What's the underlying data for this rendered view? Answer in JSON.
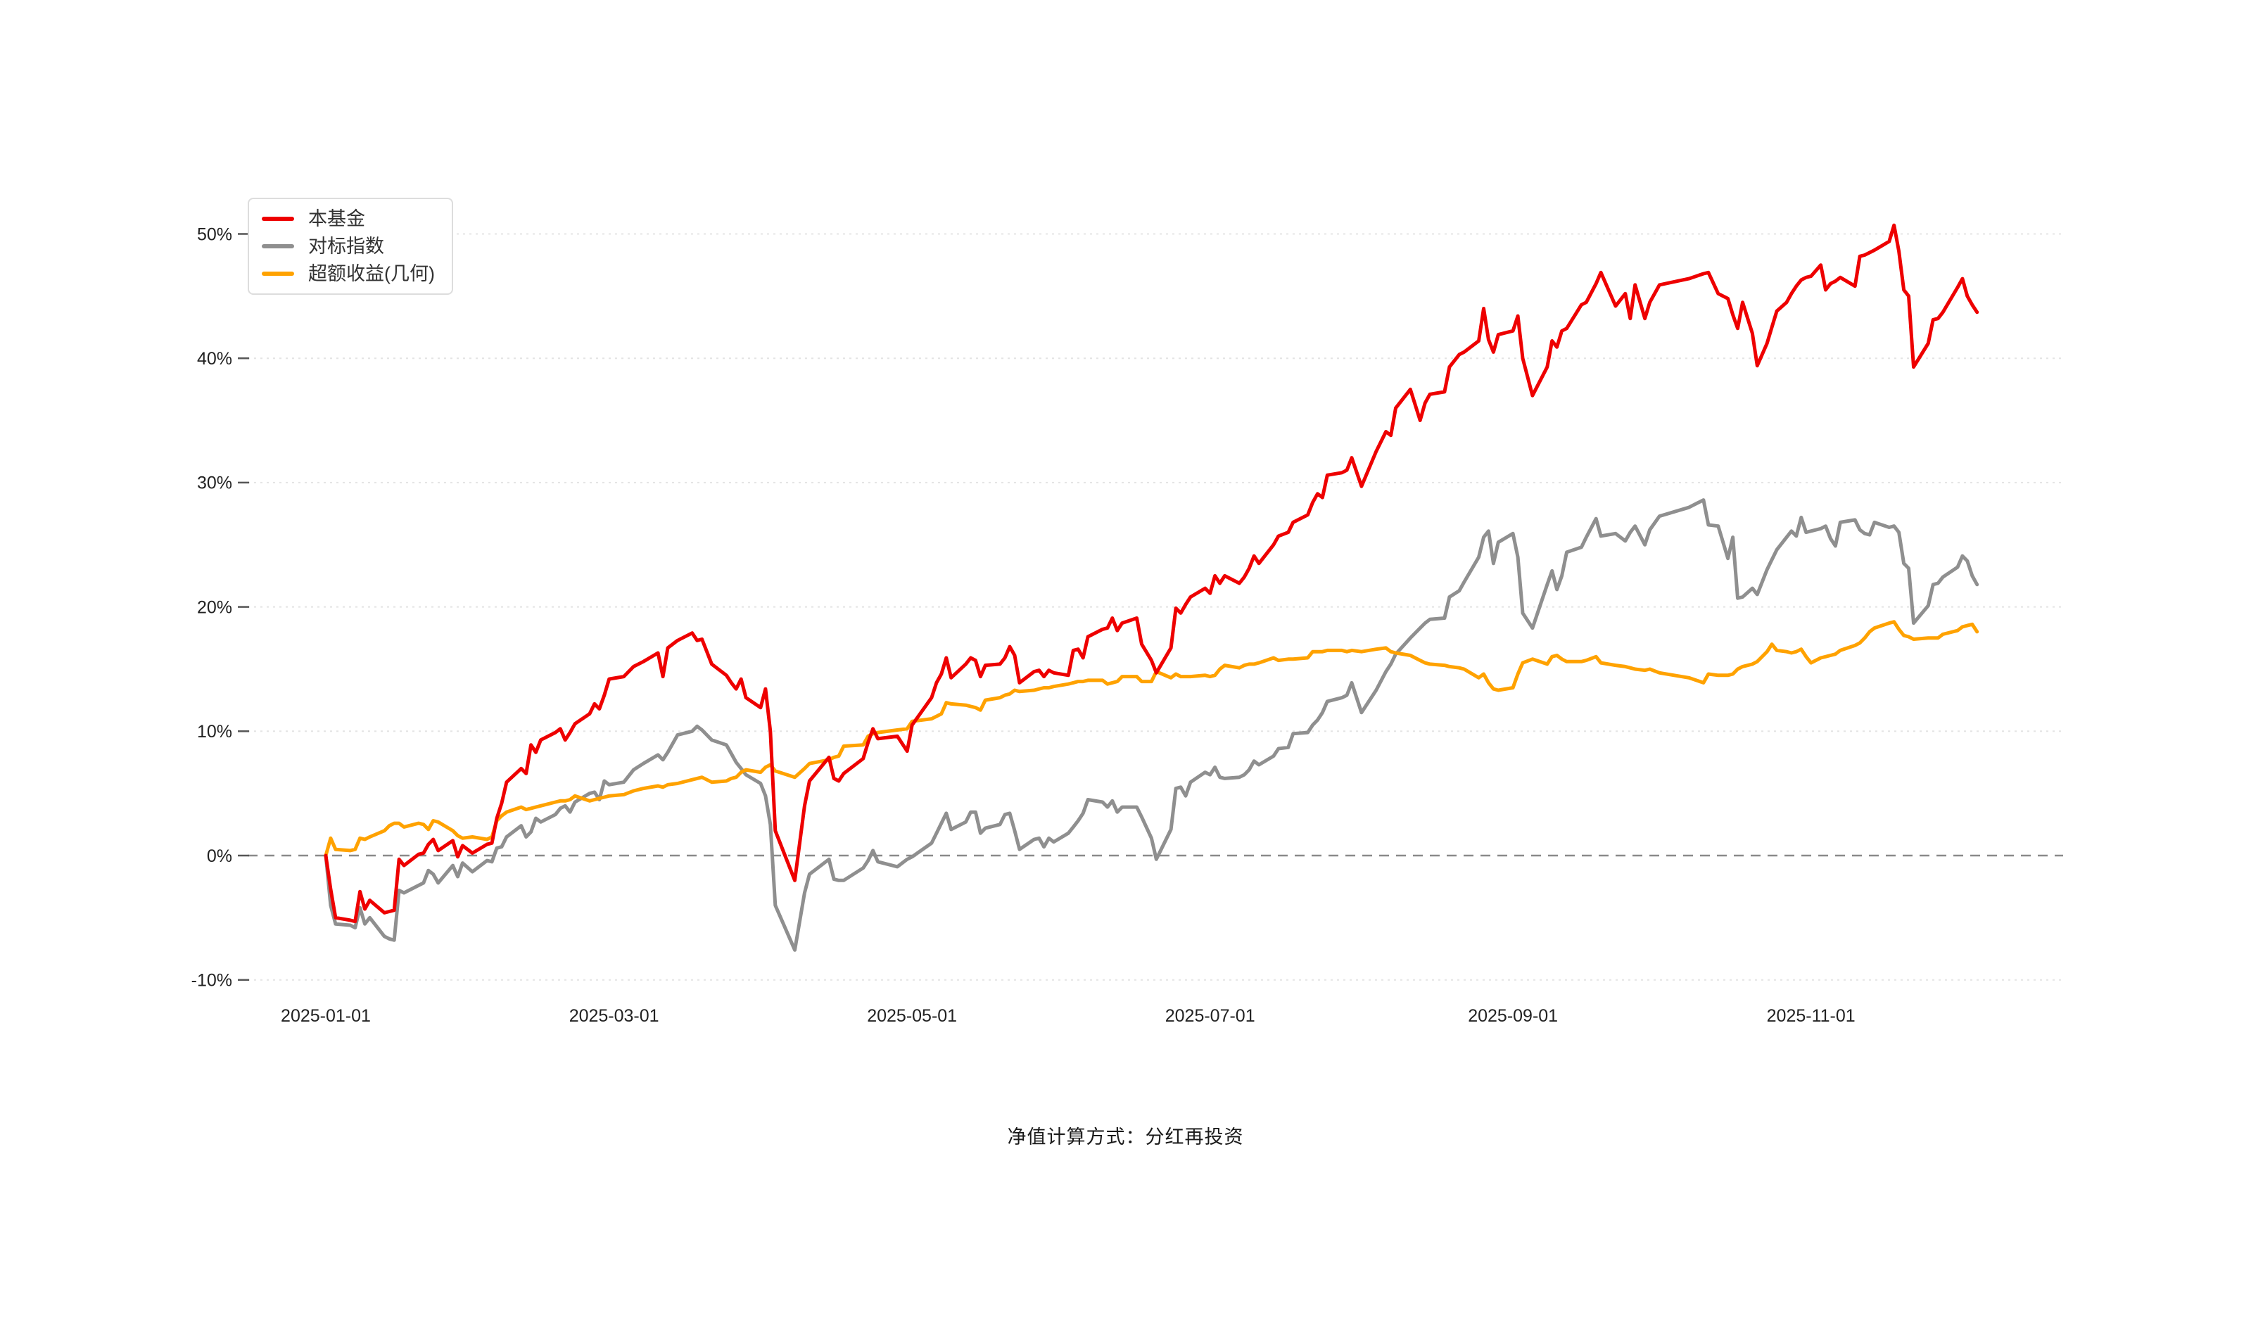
{
  "chart_data": {
    "type": "line",
    "title": "",
    "xlabel": "",
    "ylabel": "",
    "ylim": [
      -10,
      50
    ],
    "grid": true,
    "legend_position": "top-left-inside",
    "y_ticks": [
      "50%",
      "40%",
      "30%",
      "20%",
      "10%",
      "0%",
      "-10%"
    ],
    "y_tick_values": [
      50,
      40,
      30,
      20,
      10,
      0,
      -10
    ],
    "x_ticks": [
      "2025-01-01",
      "2025-03-01",
      "2025-05-01",
      "2025-07-01",
      "2025-09-01",
      "2025-11-01"
    ],
    "zero_line_value": 0,
    "series": [
      {
        "id": "fund",
        "name": "本基金",
        "color": "#ee0000"
      },
      {
        "id": "index",
        "name": "对标指数",
        "color": "#8f8f8f"
      },
      {
        "id": "excess",
        "name": "超额收益(几何)",
        "color": "#ffa200"
      }
    ],
    "unit": "%",
    "dates": [
      "01-01",
      "01-02",
      "01-03",
      "01-06",
      "01-07",
      "01-08",
      "01-09",
      "01-10",
      "01-13",
      "01-14",
      "01-15",
      "01-16",
      "01-17",
      "01-20",
      "01-21",
      "01-22",
      "01-23",
      "01-24",
      "01-27",
      "01-28",
      "01-29",
      "01-31",
      "02-03",
      "02-04",
      "02-05",
      "02-06",
      "02-07",
      "02-10",
      "02-11",
      "02-12",
      "02-13",
      "02-14",
      "02-17",
      "02-18",
      "02-19",
      "02-20",
      "02-21",
      "02-24",
      "02-25",
      "02-26",
      "02-27",
      "02-28",
      "03-03",
      "03-05",
      "03-07",
      "03-10",
      "03-11",
      "03-12",
      "03-14",
      "03-17",
      "03-18",
      "03-19",
      "03-21",
      "03-24",
      "03-25",
      "03-26",
      "03-27",
      "03-28",
      "03-31",
      "04-01",
      "04-02",
      "04-03",
      "04-07",
      "04-09",
      "04-10",
      "04-14",
      "04-15",
      "04-16",
      "04-17",
      "04-21",
      "04-22",
      "04-23",
      "04-24",
      "04-28",
      "04-30",
      "05-01",
      "05-05",
      "05-06",
      "05-07",
      "05-08",
      "05-09",
      "05-12",
      "05-13",
      "05-14",
      "05-15",
      "05-16",
      "05-19",
      "05-20",
      "05-21",
      "05-22",
      "05-23",
      "05-26",
      "05-27",
      "05-28",
      "05-29",
      "05-30",
      "06-02",
      "06-03",
      "06-04",
      "06-05",
      "06-06",
      "06-09",
      "06-10",
      "06-11",
      "06-12",
      "06-13",
      "06-16",
      "06-17",
      "06-19",
      "06-20",
      "06-23",
      "06-24",
      "06-25",
      "06-26",
      "06-27",
      "06-30",
      "07-01",
      "07-02",
      "07-03",
      "07-04",
      "07-07",
      "07-08",
      "07-09",
      "07-10",
      "07-11",
      "07-14",
      "07-15",
      "07-17",
      "07-18",
      "07-21",
      "07-22",
      "07-23",
      "07-24",
      "07-25",
      "07-28",
      "07-29",
      "07-30",
      "08-01",
      "08-04",
      "08-06",
      "08-07",
      "08-08",
      "08-11",
      "08-13",
      "08-14",
      "08-15",
      "08-18",
      "08-19",
      "08-21",
      "08-22",
      "08-25",
      "08-26",
      "08-27",
      "08-28",
      "08-29",
      "09-01",
      "09-02",
      "09-03",
      "09-05",
      "09-08",
      "09-09",
      "09-10",
      "09-11",
      "09-12",
      "09-15",
      "09-16",
      "09-18",
      "09-19",
      "09-22",
      "09-24",
      "09-25",
      "09-26",
      "09-28",
      "09-29",
      "10-01",
      "10-07",
      "10-10",
      "10-11",
      "10-13",
      "10-15",
      "10-16",
      "10-17",
      "10-18",
      "10-20",
      "10-21",
      "10-23",
      "10-24",
      "10-25",
      "10-27",
      "10-28",
      "10-29",
      "10-30",
      "10-31",
      "11-01",
      "11-03",
      "11-04",
      "11-05",
      "11-06",
      "11-07",
      "11-10",
      "11-11",
      "11-12",
      "11-13",
      "11-14",
      "11-17",
      "11-18",
      "11-19",
      "11-20",
      "11-21",
      "11-22",
      "11-25",
      "11-26",
      "11-27",
      "11-28",
      "12-01",
      "12-02",
      "12-03",
      "12-04",
      "12-05"
    ],
    "values": {
      "fund": [
        0,
        -2.7,
        -5,
        -5.2,
        -5.3,
        -2.9,
        -4.3,
        -3.6,
        -4.6,
        -4.5,
        -4.4,
        -0.3,
        -0.8,
        0.1,
        0.2,
        0.9,
        1.3,
        0.4,
        1.2,
        -0.1,
        0.8,
        0.2,
        0.9,
        1,
        3,
        4.2,
        5.9,
        7,
        6.6,
        8.9,
        8.3,
        9.3,
        9.9,
        10.2,
        9.3,
        9.9,
        10.6,
        11.4,
        12.2,
        11.8,
        12.9,
        14.2,
        14.4,
        15.2,
        15.6,
        16.3,
        14.4,
        16.7,
        17.3,
        17.9,
        17.3,
        17.4,
        15.4,
        14.5,
        13.9,
        13.4,
        14.2,
        12.7,
        11.9,
        13.4,
        10,
        2,
        -2,
        4,
        6,
        7.9,
        6.2,
        6,
        6.6,
        7.8,
        9.1,
        10.2,
        9.4,
        9.6,
        8.4,
        10.5,
        12.7,
        13.9,
        14.6,
        15.9,
        14.3,
        15.4,
        15.9,
        15.7,
        14.4,
        15.3,
        15.4,
        15.9,
        16.8,
        16.1,
        13.9,
        14.8,
        14.9,
        14.4,
        14.9,
        14.7,
        14.5,
        16.5,
        16.6,
        15.9,
        17.6,
        18.2,
        18.3,
        19.1,
        18.1,
        18.7,
        19.1,
        17,
        15.7,
        14.7,
        16.7,
        19.9,
        19.5,
        20.2,
        20.8,
        21.5,
        21.1,
        22.5,
        21.9,
        22.5,
        21.9,
        22.4,
        23.1,
        24.1,
        23.5,
        25,
        25.7,
        26,
        26.8,
        27.4,
        28.4,
        29.1,
        28.8,
        30.6,
        30.8,
        31,
        32,
        29.7,
        32.5,
        34.1,
        33.8,
        36,
        37.5,
        35,
        36.4,
        37.1,
        37.3,
        39.3,
        40.3,
        40.5,
        41.4,
        44,
        41.5,
        40.5,
        41.9,
        42.2,
        43.4,
        40,
        37,
        39.3,
        41.4,
        40.9,
        42.2,
        42.4,
        44.3,
        44.5,
        46,
        46.9,
        44.2,
        45.2,
        43.2,
        45.9,
        43.2,
        44.5,
        45.9,
        46.4,
        46.8,
        46.9,
        45.2,
        44.8,
        43.5,
        42.4,
        44.5,
        42,
        39.4,
        41.2,
        42.5,
        43.8,
        44.5,
        45.2,
        45.8,
        46.3,
        46.5,
        46.6,
        47.5,
        45.5,
        46,
        46.2,
        46.5,
        45.8,
        48.2,
        48.3,
        48.5,
        48.7,
        49.4,
        50.7,
        48.6,
        45.5,
        45,
        39.3,
        41.2,
        43.1,
        43.2,
        43.7,
        45.7,
        46.4,
        45,
        44.3,
        43.7
      ],
      "index": [
        0,
        -4,
        -5.5,
        -5.6,
        -5.8,
        -4.2,
        -5.5,
        -5,
        -6.5,
        -6.7,
        -6.8,
        -2.8,
        -3,
        -2.4,
        -2.2,
        -1.2,
        -1.5,
        -2.2,
        -0.8,
        -1.7,
        -0.6,
        -1.3,
        -0.4,
        -0.5,
        0.6,
        0.7,
        1.5,
        2.4,
        1.5,
        1.9,
        3,
        2.7,
        3.3,
        3.8,
        4,
        3.5,
        4.3,
        5,
        5.1,
        4.5,
        6,
        5.7,
        5.9,
        6.9,
        7.4,
        8.1,
        7.7,
        8.3,
        9.7,
        10,
        10.4,
        10.1,
        9.3,
        8.9,
        8.2,
        7.5,
        7,
        6.5,
        5.8,
        4.8,
        2.5,
        -4,
        -7.6,
        -3,
        -1.5,
        -0.3,
        -1.9,
        -2,
        -2,
        -1,
        -0.4,
        0.4,
        -0.5,
        -0.9,
        -0.3,
        -0.1,
        1,
        1.8,
        2.6,
        3.4,
        2.1,
        2.7,
        3.5,
        3.5,
        1.8,
        2.2,
        2.5,
        3.3,
        3.4,
        2,
        0.5,
        1.3,
        1.4,
        0.7,
        1.4,
        1.1,
        1.8,
        2.3,
        2.8,
        3.4,
        4.5,
        4.3,
        3.9,
        4.4,
        3.5,
        3.9,
        3.9,
        3.1,
        1.4,
        -0.3,
        2.1,
        5.4,
        5.5,
        4.8,
        5.9,
        6.7,
        6.5,
        7.1,
        6.3,
        6.2,
        6.3,
        6.5,
        6.9,
        7.6,
        7.3,
        8,
        8.6,
        8.7,
        9.8,
        9.9,
        10.5,
        10.9,
        11.5,
        12.4,
        12.7,
        12.9,
        13.9,
        11.5,
        13.3,
        14.8,
        15.4,
        16.2,
        17.5,
        18.3,
        18.7,
        19,
        19.1,
        20.8,
        21.3,
        22,
        24,
        25.6,
        26.1,
        23.5,
        25.2,
        25.9,
        24,
        19.5,
        18.3,
        21.8,
        22.9,
        21.4,
        22.5,
        24.4,
        24.8,
        25.6,
        27.1,
        25.7,
        25.9,
        25.3,
        26,
        26.5,
        25,
        26.2,
        27.3,
        28,
        28.6,
        26.6,
        26.5,
        23.9,
        25.6,
        20.7,
        20.8,
        21.5,
        21,
        23,
        23.8,
        24.6,
        25.6,
        26.1,
        25.7,
        27.2,
        26,
        26.1,
        26.3,
        26.5,
        25.5,
        24.9,
        26.8,
        27,
        26.2,
        25.9,
        25.8,
        26.8,
        26.4,
        26.5,
        26,
        23.5,
        23.1,
        18.7,
        20.1,
        21.8,
        21.9,
        22.4,
        23.2,
        24.1,
        23.7,
        22.5,
        21.8
      ],
      "excess": [
        0,
        1.4,
        0.5,
        0.4,
        0.5,
        1.4,
        1.3,
        1.5,
        2,
        2.4,
        2.6,
        2.6,
        2.3,
        2.6,
        2.5,
        2.1,
        2.8,
        2.7,
        2,
        1.6,
        1.4,
        1.5,
        1.3,
        1.5,
        2.8,
        3.2,
        3.5,
        3.9,
        3.7,
        3.8,
        3.9,
        4,
        4.3,
        4.4,
        4.4,
        4.5,
        4.8,
        4.4,
        4.5,
        4.6,
        4.7,
        4.8,
        4.9,
        5.2,
        5.4,
        5.6,
        5.5,
        5.7,
        5.8,
        6.1,
        6.2,
        6.3,
        5.9,
        6,
        6.2,
        6.3,
        6.7,
        6.9,
        6.7,
        7.1,
        7.3,
        6.8,
        6.3,
        7,
        7.4,
        7.7,
        7.9,
        8,
        8.8,
        8.9,
        9.6,
        9.8,
        9.9,
        10.1,
        10.2,
        10.8,
        11,
        11.2,
        11.4,
        12.3,
        12.2,
        12.1,
        12,
        11.9,
        11.7,
        12.5,
        12.7,
        12.9,
        13,
        13.3,
        13.2,
        13.3,
        13.4,
        13.5,
        13.5,
        13.6,
        13.8,
        13.9,
        14,
        14,
        14.1,
        14.1,
        13.8,
        13.9,
        14,
        14.4,
        14.4,
        14,
        14,
        14.8,
        14.3,
        14.6,
        14.4,
        14.4,
        14.4,
        14.5,
        14.4,
        14.5,
        15,
        15.3,
        15.1,
        15.3,
        15.4,
        15.4,
        15.5,
        15.9,
        15.7,
        15.8,
        15.8,
        15.9,
        16.4,
        16.4,
        16.4,
        16.5,
        16.5,
        16.4,
        16.5,
        16.4,
        16.6,
        16.7,
        16.4,
        16.3,
        16.1,
        15.7,
        15.5,
        15.4,
        15.3,
        15.2,
        15.1,
        15,
        14.3,
        14.6,
        13.9,
        13.4,
        13.3,
        13.5,
        14.6,
        15.5,
        15.8,
        15.4,
        16,
        16.1,
        15.8,
        15.6,
        15.6,
        15.7,
        16,
        15.5,
        15.3,
        15.2,
        15.1,
        15,
        14.9,
        15,
        14.7,
        14.3,
        13.9,
        14.6,
        14.5,
        14.5,
        14.6,
        15,
        15.2,
        15.4,
        15.6,
        16.4,
        17,
        16.5,
        16.4,
        16.3,
        16.4,
        16.6,
        16,
        15.5,
        15.9,
        16,
        16.1,
        16.2,
        16.5,
        16.9,
        17.1,
        17.5,
        18,
        18.3,
        18.7,
        18.8,
        18.2,
        17.7,
        17.6,
        17.4,
        17.5,
        17.5,
        17.5,
        17.8,
        18.1,
        18.4,
        18.5,
        18.6,
        18
      ]
    }
  },
  "footer": {
    "note": "净值计算方式：分红再投资"
  }
}
